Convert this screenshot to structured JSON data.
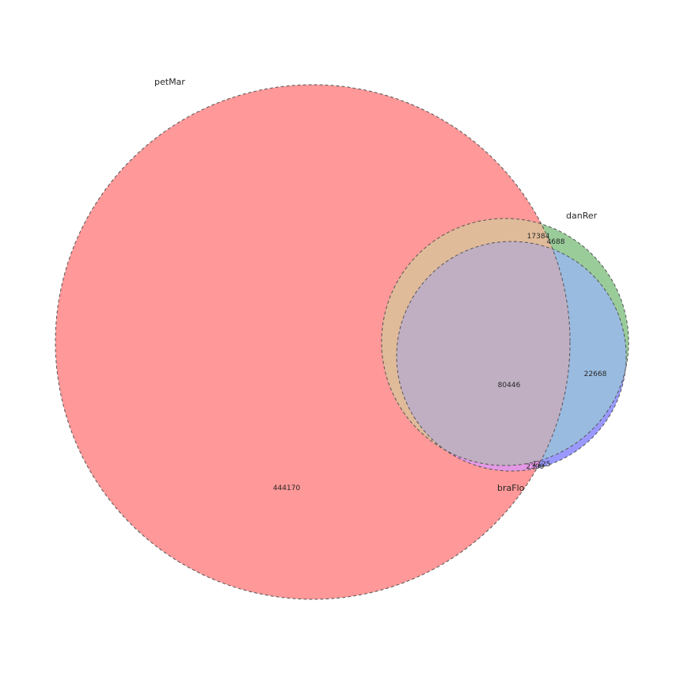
{
  "sets": [
    {
      "key": "petMar",
      "label": "petMar",
      "color": "#ff0000"
    },
    {
      "key": "danRer",
      "label": "danRer",
      "color": "#008000"
    },
    {
      "key": "braFlo",
      "label": "braFlo",
      "color": "#0000ff"
    }
  ],
  "regions": {
    "petMar_only": "444170",
    "petMar_danRer": "17384",
    "danRer_only": "4688",
    "all_three": "80446",
    "danRer_braFlo": "22668",
    "braFlo_only": "1125",
    "petMar_braFlo": "2309"
  }
}
